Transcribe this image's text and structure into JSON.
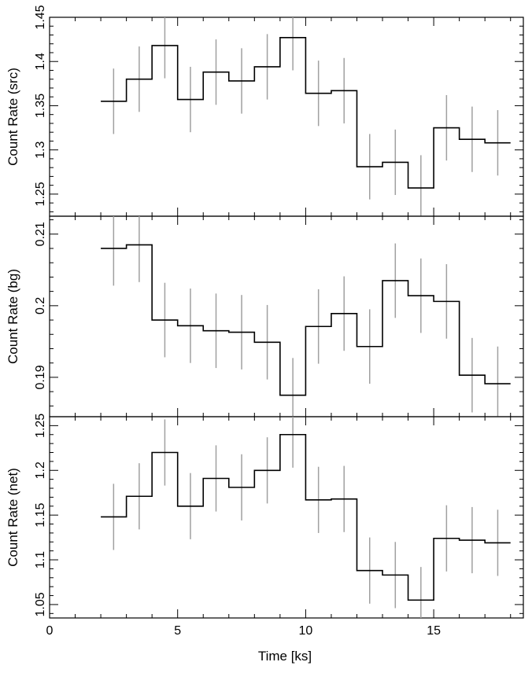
{
  "chart_data": [
    {
      "type": "line",
      "ylabel": "Count Rate (src)",
      "xlabel": "",
      "xlim": [
        0,
        18.5
      ],
      "ylim": [
        1.225,
        1.45
      ],
      "yticks": [
        1.25,
        1.3,
        1.35,
        1.4,
        1.45
      ],
      "ytick_labels": [
        "1.25",
        "1.3",
        "1.35",
        "1.4",
        "1.45"
      ],
      "bin_edges": [
        2.0,
        3.0,
        4.0,
        5.0,
        6.0,
        7.0,
        8.0,
        9.0,
        10.0,
        11.0,
        12.0,
        13.0,
        14.0,
        15.0,
        16.0,
        17.0,
        18.0
      ],
      "values": [
        1.355,
        1.38,
        1.418,
        1.357,
        1.388,
        1.378,
        1.394,
        1.427,
        1.364,
        1.367,
        1.281,
        1.286,
        1.257,
        1.325,
        1.312,
        1.308
      ],
      "errors": [
        0.037,
        0.037,
        0.037,
        0.037,
        0.037,
        0.037,
        0.037,
        0.037,
        0.037,
        0.037,
        0.037,
        0.037,
        0.037,
        0.037,
        0.037,
        0.037
      ]
    },
    {
      "type": "line",
      "ylabel": "Count Rate (bg)",
      "xlabel": "",
      "xlim": [
        0,
        18.5
      ],
      "ylim": [
        0.1845,
        0.2125
      ],
      "yticks": [
        0.19,
        0.2,
        0.21
      ],
      "ytick_labels": [
        "0.19",
        "0.2",
        "0.21"
      ],
      "bin_edges": [
        2.0,
        3.0,
        4.0,
        5.0,
        6.0,
        7.0,
        8.0,
        9.0,
        10.0,
        11.0,
        12.0,
        13.0,
        14.0,
        15.0,
        16.0,
        17.0,
        18.0
      ],
      "values": [
        0.208,
        0.2085,
        0.198,
        0.1972,
        0.1965,
        0.1963,
        0.1949,
        0.1875,
        0.1971,
        0.1989,
        0.1943,
        0.2035,
        0.2014,
        0.2006,
        0.1903,
        0.1891
      ],
      "errors": [
        0.0052,
        0.0052,
        0.0052,
        0.0052,
        0.0052,
        0.0052,
        0.0052,
        0.0052,
        0.0052,
        0.0052,
        0.0052,
        0.0052,
        0.0052,
        0.0052,
        0.0052,
        0.0052
      ]
    },
    {
      "type": "line",
      "ylabel": "Count Rate (net)",
      "xlabel": "Time [ks]",
      "xlim": [
        0,
        18.5
      ],
      "ylim": [
        1.035,
        1.26
      ],
      "yticks": [
        1.05,
        1.1,
        1.15,
        1.2,
        1.25
      ],
      "ytick_labels": [
        "1.05",
        "1.1",
        "1.15",
        "1.2",
        "1.25"
      ],
      "xticks": [
        0,
        5,
        10,
        15
      ],
      "xtick_labels": [
        "0",
        "5",
        "10",
        "15"
      ],
      "bin_edges": [
        2.0,
        3.0,
        4.0,
        5.0,
        6.0,
        7.0,
        8.0,
        9.0,
        10.0,
        11.0,
        12.0,
        13.0,
        14.0,
        15.0,
        16.0,
        17.0,
        18.0
      ],
      "values": [
        1.148,
        1.171,
        1.22,
        1.16,
        1.191,
        1.181,
        1.2,
        1.24,
        1.167,
        1.168,
        1.088,
        1.083,
        1.055,
        1.124,
        1.122,
        1.119
      ],
      "errors": [
        0.037,
        0.037,
        0.037,
        0.037,
        0.037,
        0.037,
        0.037,
        0.037,
        0.037,
        0.037,
        0.037,
        0.037,
        0.037,
        0.037,
        0.037,
        0.037
      ]
    }
  ]
}
